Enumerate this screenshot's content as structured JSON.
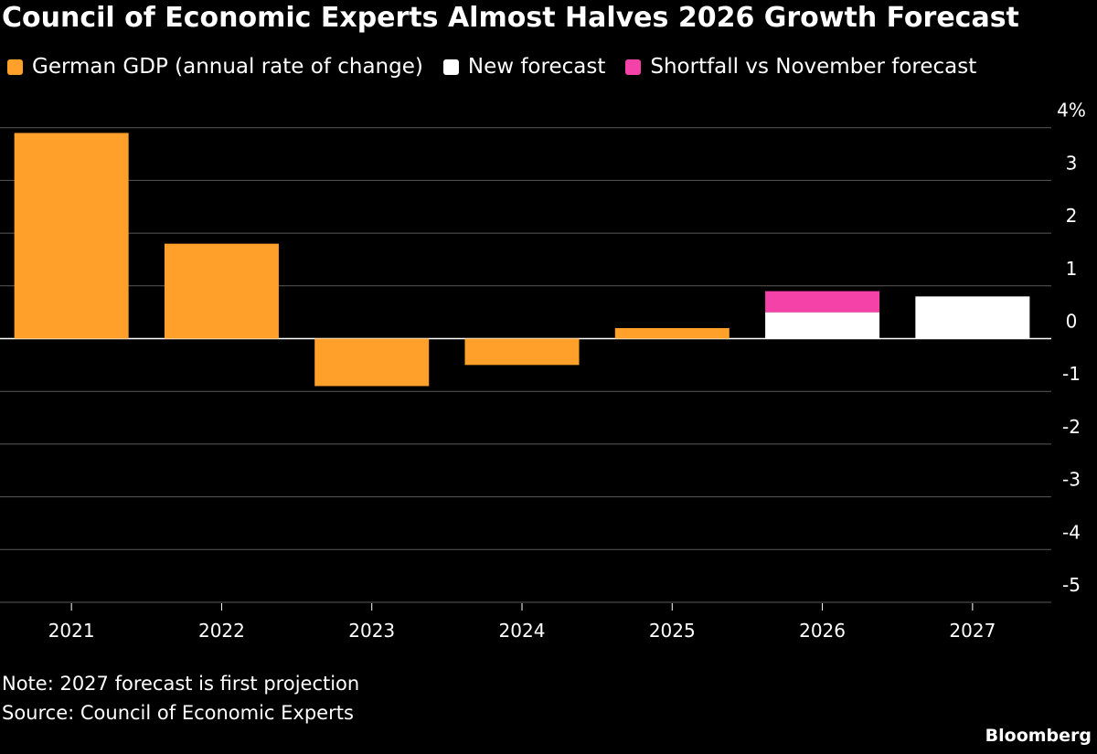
{
  "chart_data": {
    "type": "bar",
    "title": "Council of Economic Experts Almost Halves 2026 Growth Forecast",
    "categories": [
      "2021",
      "2022",
      "2023",
      "2024",
      "2025",
      "2026",
      "2027"
    ],
    "series": [
      {
        "name": "German GDP (annual rate of change)",
        "color": "#ffa02a",
        "values": [
          3.9,
          1.8,
          -0.9,
          -0.5,
          0.2,
          null,
          null
        ]
      },
      {
        "name": "New forecast",
        "color": "#ffffff",
        "values": [
          null,
          null,
          null,
          null,
          null,
          0.5,
          0.8
        ]
      },
      {
        "name": "Shortfall vs November forecast",
        "color": "#f542a8",
        "values": [
          null,
          null,
          null,
          null,
          null,
          0.4,
          null
        ],
        "stacked_on": "New forecast"
      }
    ],
    "yticks": [
      "4%",
      "3",
      "2",
      "1",
      "0",
      "-1",
      "-2",
      "-3",
      "-4",
      "-5"
    ],
    "ytick_values": [
      4,
      3,
      2,
      1,
      0,
      -1,
      -2,
      -3,
      -4,
      -5
    ],
    "ylim": [
      -5,
      4
    ],
    "grid": true,
    "legend_position": "top-left",
    "y_axis_side": "right"
  },
  "notes": {
    "note": "Note: 2027 forecast is first projection",
    "source": "Source: Council of Economic Experts"
  },
  "brand": "Bloomberg"
}
